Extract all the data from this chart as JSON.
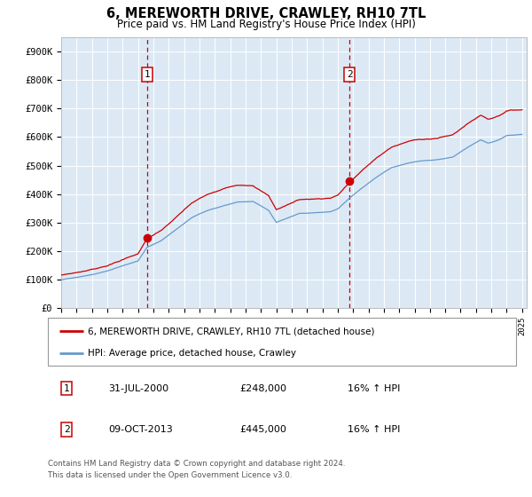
{
  "title": "6, MEREWORTH DRIVE, CRAWLEY, RH10 7TL",
  "subtitle": "Price paid vs. HM Land Registry's House Price Index (HPI)",
  "red_label": "6, MEREWORTH DRIVE, CRAWLEY, RH10 7TL (detached house)",
  "blue_label": "HPI: Average price, detached house, Crawley",
  "sale1_date": "31-JUL-2000",
  "sale1_price": 248000,
  "sale1_hpi": "16%",
  "sale2_date": "09-OCT-2013",
  "sale2_price": 445000,
  "sale2_hpi": "16%",
  "footnote1": "Contains HM Land Registry data © Crown copyright and database right 2024.",
  "footnote2": "This data is licensed under the Open Government Licence v3.0.",
  "background_color": "#dce9f5",
  "red_color": "#cc0000",
  "blue_color": "#6699cc",
  "ylim": [
    0,
    950000
  ],
  "yticks": [
    0,
    100000,
    200000,
    300000,
    400000,
    500000,
    600000,
    700000,
    800000,
    900000
  ],
  "ytick_labels": [
    "£0",
    "£100K",
    "£200K",
    "£300K",
    "£400K",
    "£500K",
    "£600K",
    "£700K",
    "£800K",
    "£900K"
  ],
  "sale1_year": 2000.58,
  "sale2_year": 2013.77
}
